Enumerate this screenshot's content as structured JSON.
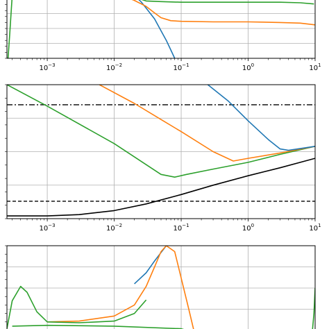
{
  "chart_data": [
    {
      "type": "line",
      "xscale": "log",
      "xlim": [
        0.00025,
        10
      ],
      "xticks": [
        {
          "base": "10",
          "exp": "−3",
          "value": 0.001
        },
        {
          "base": "10",
          "exp": "−2",
          "value": 0.01
        },
        {
          "base": "10",
          "exp": "−1",
          "value": 0.1
        },
        {
          "base": "10",
          "exp": "0",
          "value": 1
        },
        {
          "base": "10",
          "exp": "1",
          "value": 10
        }
      ],
      "ylim": [
        0,
        1
      ],
      "grid": true,
      "series": [
        {
          "color": "#1f77b4",
          "x": [
            0.02,
            0.025,
            0.03,
            0.04,
            0.05,
            0.06,
            0.07,
            0.08
          ],
          "y": [
            1.05,
            0.95,
            0.84,
            0.66,
            0.46,
            0.3,
            0.14,
            0.0
          ]
        },
        {
          "color": "#ff7f0e",
          "x": [
            0.013,
            0.02,
            0.03,
            0.04,
            0.05,
            0.07,
            0.1,
            0.3,
            1,
            3,
            6,
            10
          ],
          "y": [
            1.05,
            0.97,
            0.87,
            0.76,
            0.68,
            0.63,
            0.62,
            0.61,
            0.61,
            0.6,
            0.59,
            0.56
          ]
        },
        {
          "color": "#2ca02c",
          "x": [
            0.02,
            0.025,
            0.03,
            0.05,
            0.1,
            0.3,
            1,
            3,
            6,
            9.6
          ],
          "y": [
            1.05,
            0.99,
            0.96,
            0.95,
            0.94,
            0.94,
            0.94,
            0.94,
            0.93,
            0.91
          ]
        },
        {
          "color": "#2ca02c",
          "x": [
            0.00026,
            0.000275,
            0.00029,
            0.0003
          ],
          "y": [
            0.0,
            0.4,
            0.8,
            1.05
          ]
        }
      ]
    },
    {
      "type": "line",
      "xscale": "log",
      "xlim": [
        0.00025,
        10
      ],
      "xticks": [
        {
          "base": "10",
          "exp": "−3",
          "value": 0.001
        },
        {
          "base": "10",
          "exp": "−2",
          "value": 0.01
        },
        {
          "base": "10",
          "exp": "−1",
          "value": 0.1
        },
        {
          "base": "10",
          "exp": "0",
          "value": 1
        },
        {
          "base": "10",
          "exp": "1",
          "value": 10
        }
      ],
      "ylim": [
        0,
        1
      ],
      "grid": true,
      "hlines": [
        {
          "y": 0.85,
          "style": "dashdot",
          "color": "#000000"
        },
        {
          "y": 0.13,
          "style": "dashed",
          "color": "#000000"
        }
      ],
      "series": [
        {
          "color": "#2ca02c",
          "x": [
            0.00025,
            0.001,
            0.01,
            0.05,
            0.08,
            0.12,
            0.3,
            1,
            3,
            10
          ],
          "y": [
            1.0,
            0.84,
            0.56,
            0.33,
            0.31,
            0.33,
            0.37,
            0.42,
            0.48,
            0.54
          ]
        },
        {
          "color": "#ff7f0e",
          "x": [
            0.006,
            0.02,
            0.05,
            0.1,
            0.3,
            0.6,
            1,
            3,
            10
          ],
          "y": [
            1.0,
            0.86,
            0.74,
            0.65,
            0.5,
            0.43,
            0.45,
            0.49,
            0.54
          ]
        },
        {
          "color": "#1f77b4",
          "x": [
            0.25,
            0.5,
            1,
            2,
            3,
            4,
            10
          ],
          "y": [
            1.0,
            0.88,
            0.73,
            0.59,
            0.52,
            0.51,
            0.54
          ]
        },
        {
          "color": "#000000",
          "x": [
            0.00025,
            0.001,
            0.003,
            0.01,
            0.03,
            0.1,
            0.3,
            1,
            3,
            10
          ],
          "y": [
            0.02,
            0.02,
            0.03,
            0.06,
            0.11,
            0.18,
            0.25,
            0.32,
            0.38,
            0.45
          ]
        }
      ]
    },
    {
      "type": "line",
      "xscale": "log",
      "xlim": [
        0.00025,
        10
      ],
      "ylim": [
        0,
        1
      ],
      "grid": true,
      "series": [
        {
          "color": "#1f77b4",
          "x": [
            0.02,
            0.03,
            0.04,
            0.05,
            0.06,
            0.075
          ],
          "y": [
            0.55,
            0.68,
            0.82,
            0.92,
            1.0,
            1.1
          ]
        },
        {
          "color": "#ff7f0e",
          "x": [
            0.001,
            0.003,
            0.01,
            0.02,
            0.03,
            0.04,
            0.05,
            0.06,
            0.08,
            0.1,
            0.13,
            0.16
          ],
          "y": [
            0.1,
            0.11,
            0.17,
            0.3,
            0.52,
            0.75,
            0.93,
            1.0,
            0.93,
            0.62,
            0.25,
            -0.05
          ]
        },
        {
          "color": "#2ca02c",
          "x": [
            0.00025,
            0.0003,
            0.0004,
            0.0005,
            0.0007,
            0.001,
            0.003,
            0.01,
            0.02,
            0.03
          ],
          "y": [
            0.02,
            0.35,
            0.52,
            0.45,
            0.22,
            0.1,
            0.09,
            0.11,
            0.2,
            0.36
          ]
        },
        {
          "color": "#2ca02c",
          "x": [
            0.0003,
            0.001,
            0.01,
            0.1,
            0.2
          ],
          "y": [
            0.05,
            0.06,
            0.05,
            0.02,
            -0.05
          ]
        },
        {
          "color": "#2ca02c",
          "x": [
            9.0,
            9.6,
            10
          ],
          "y": [
            -0.05,
            0.2,
            0.5
          ]
        }
      ]
    }
  ]
}
